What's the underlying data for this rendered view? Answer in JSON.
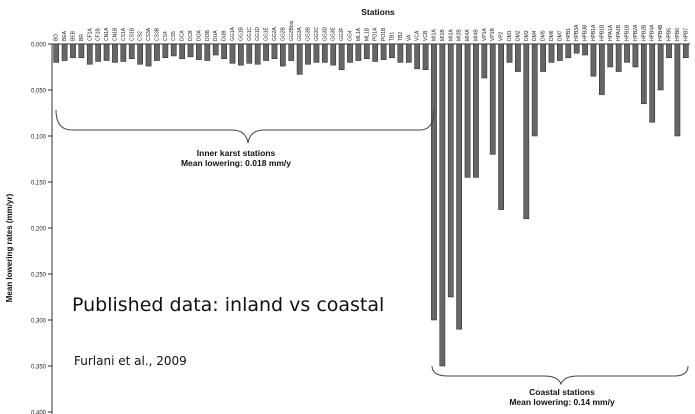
{
  "chart_data": {
    "type": "bar",
    "title": "Stations",
    "xlabel": "",
    "ylabel": "Mean lowering rates (mm/yr)",
    "y_inverted": true,
    "ylim": [
      0,
      0.4
    ],
    "yticks": [
      "0,000",
      "0,050",
      "0,100",
      "0,150",
      "0,200",
      "0,250",
      "0,300",
      "0,350",
      "0,400"
    ],
    "grid": false,
    "legend": "none",
    "bar_color": "#666666",
    "categories": [
      "BO",
      "BEA",
      "BEB",
      "BR",
      "CF1A",
      "CF1B",
      "CN1A",
      "CN1B",
      "CS1A",
      "CS1B",
      "CS2",
      "CS3A",
      "CS3B",
      "CS4",
      "CS5",
      "DCA",
      "DCB",
      "DOA",
      "DOB",
      "DUA",
      "DUB",
      "GG1A",
      "GG1B",
      "GG1C",
      "GG1D",
      "GG1E",
      "GG2A",
      "GG2B",
      "GG2Bbis",
      "GG3A",
      "GG3B",
      "GG3C",
      "GG3D",
      "GG3E",
      "GG3F",
      "GG4",
      "ML1A",
      "ML1B",
      "PO1A",
      "PO1B",
      "TB1",
      "TB2",
      "VA",
      "VCA",
      "VCB",
      "MI1A",
      "MI1B",
      "MI2A",
      "MI2B",
      "MI4A",
      "MI4B",
      "VP1A",
      "VP1B",
      "VP2",
      "DM1",
      "DM2",
      "DM3",
      "DM4",
      "DM5",
      "DM6",
      "DM7",
      "HPB1",
      "HPB3A",
      "HPB3B",
      "HPB1A",
      "HPB1B",
      "HPA1A",
      "HPA1B",
      "HPB1B",
      "HPB2A",
      "HPB2B",
      "HPB4A",
      "HPB4B",
      "HPB5",
      "HPB6",
      "HPB7"
    ],
    "values": [
      0.02,
      0.018,
      0.015,
      0.015,
      0.022,
      0.019,
      0.018,
      0.02,
      0.019,
      0.016,
      0.022,
      0.024,
      0.018,
      0.015,
      0.013,
      0.016,
      0.014,
      0.017,
      0.018,
      0.012,
      0.016,
      0.021,
      0.023,
      0.021,
      0.022,
      0.018,
      0.016,
      0.024,
      0.018,
      0.033,
      0.022,
      0.02,
      0.02,
      0.023,
      0.028,
      0.02,
      0.018,
      0.016,
      0.019,
      0.017,
      0.015,
      0.02,
      0.02,
      0.027,
      0.028,
      0.3,
      0.35,
      0.275,
      0.31,
      0.145,
      0.145,
      0.037,
      0.12,
      0.18,
      0.02,
      0.03,
      0.19,
      0.1,
      0.03,
      0.02,
      0.018,
      0.015,
      0.01,
      0.012,
      0.035,
      0.055,
      0.025,
      0.03,
      0.02,
      0.025,
      0.065,
      0.085,
      0.05,
      0.015,
      0.1,
      0.015
    ],
    "annotations": [
      {
        "group": "inner",
        "line1": "Inner karst stations",
        "line2": "Mean lowering: 0.018 mm/y"
      },
      {
        "group": "coastal",
        "line1": "Coastal stations",
        "line2": "Mean lowering: 0.14 mm/y"
      }
    ]
  },
  "overlay": {
    "title": "Published data: inland vs coastal",
    "citation": "Furlani et al., 2009"
  }
}
